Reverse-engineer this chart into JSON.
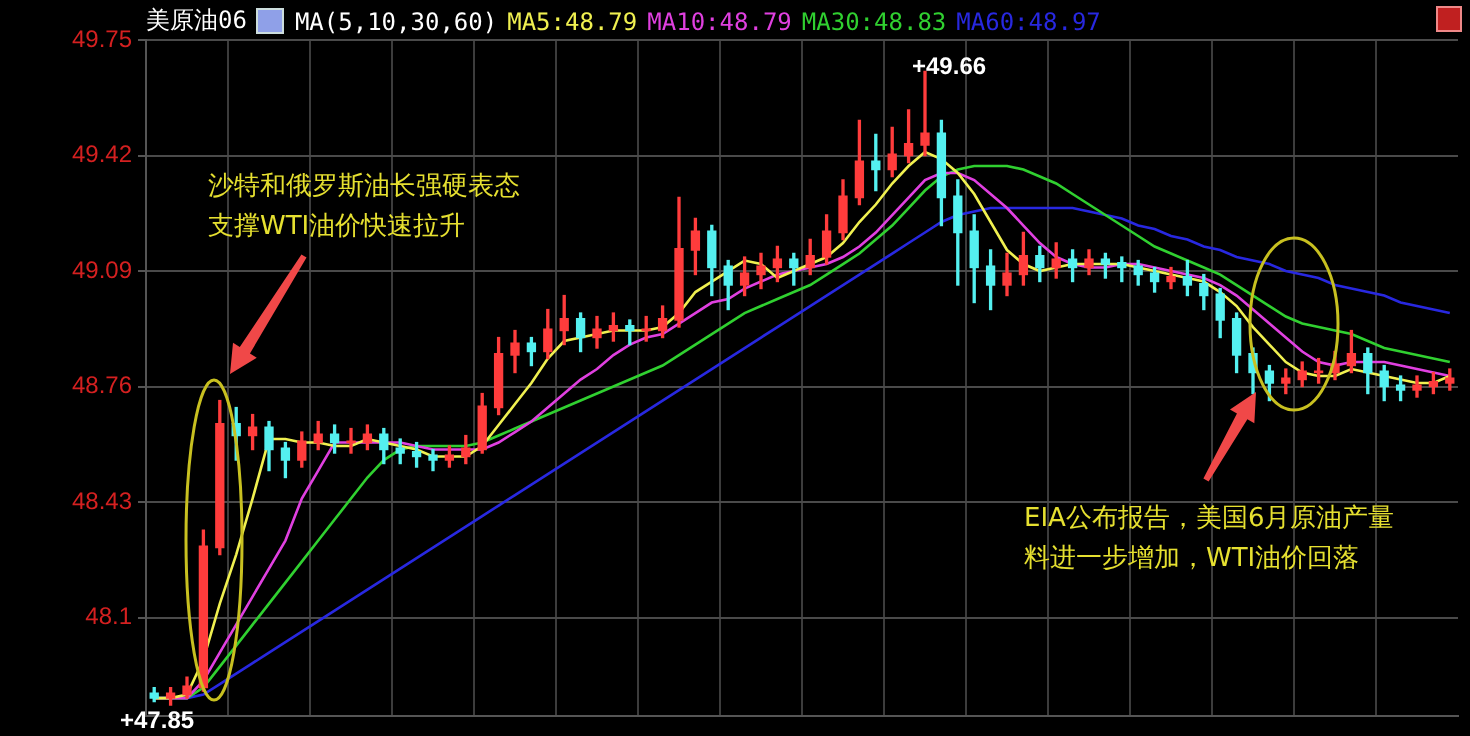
{
  "chart_data": {
    "type": "candlestick",
    "title": "美原油06",
    "subtitle": "MA(5,10,30,60)",
    "legend": "top left",
    "grid": true,
    "tick_labels": "y",
    "ylim": [
      47.82,
      49.75
    ],
    "yticks": [
      48.1,
      48.43,
      48.76,
      49.09,
      49.42,
      49.75
    ],
    "categories": [
      null,
      null,
      null,
      null,
      null,
      null,
      null,
      null,
      null,
      null,
      null,
      null,
      null,
      null,
      null,
      null,
      null,
      null,
      null,
      null,
      null,
      null,
      null,
      null,
      null,
      null,
      null,
      null,
      null,
      null,
      null,
      null,
      null,
      null,
      null,
      null,
      null,
      null,
      null,
      null,
      null,
      null,
      null,
      null,
      null,
      null,
      null,
      null,
      null,
      null,
      null,
      null,
      null,
      null,
      null,
      null,
      null,
      null,
      null,
      null,
      null,
      null,
      null,
      null,
      null,
      null,
      null,
      null,
      null,
      null,
      null,
      null,
      null,
      null,
      null,
      null,
      null,
      null,
      null,
      null
    ],
    "ohlc": [
      [
        47.88,
        47.9,
        47.86,
        47.87
      ],
      [
        47.87,
        47.9,
        47.85,
        47.88
      ],
      [
        47.88,
        47.93,
        47.87,
        47.9
      ],
      [
        47.9,
        48.35,
        47.89,
        48.3
      ],
      [
        48.3,
        48.72,
        48.28,
        48.65
      ],
      [
        48.65,
        48.7,
        48.55,
        48.62
      ],
      [
        48.62,
        48.68,
        48.58,
        48.64
      ],
      [
        48.64,
        48.66,
        48.52,
        48.58
      ],
      [
        48.58,
        48.6,
        48.5,
        48.55
      ],
      [
        48.55,
        48.63,
        48.53,
        48.6
      ],
      [
        48.6,
        48.66,
        48.58,
        48.62
      ],
      [
        48.62,
        48.65,
        48.57,
        48.6
      ],
      [
        48.6,
        48.64,
        48.57,
        48.6
      ],
      [
        48.6,
        48.65,
        48.58,
        48.62
      ],
      [
        48.62,
        48.64,
        48.54,
        48.58
      ],
      [
        48.58,
        48.61,
        48.54,
        48.57
      ],
      [
        48.57,
        48.6,
        48.53,
        48.56
      ],
      [
        48.56,
        48.58,
        48.52,
        48.55
      ],
      [
        48.55,
        48.59,
        48.53,
        48.56
      ],
      [
        48.56,
        48.62,
        48.54,
        48.58
      ],
      [
        48.58,
        48.74,
        48.57,
        48.7
      ],
      [
        48.7,
        48.9,
        48.68,
        48.85
      ],
      [
        48.85,
        48.92,
        48.8,
        48.88
      ],
      [
        48.88,
        48.9,
        48.82,
        48.86
      ],
      [
        48.86,
        48.98,
        48.84,
        48.92
      ],
      [
        48.92,
        49.02,
        48.88,
        48.95
      ],
      [
        48.95,
        48.97,
        48.86,
        48.9
      ],
      [
        48.9,
        48.96,
        48.87,
        48.92
      ],
      [
        48.92,
        48.97,
        48.89,
        48.93
      ],
      [
        48.93,
        48.95,
        48.88,
        48.92
      ],
      [
        48.92,
        48.96,
        48.89,
        48.92
      ],
      [
        48.92,
        48.99,
        48.9,
        48.95
      ],
      [
        48.95,
        49.3,
        48.93,
        49.15
      ],
      [
        49.15,
        49.24,
        49.08,
        49.2
      ],
      [
        49.2,
        49.22,
        49.02,
        49.1
      ],
      [
        49.1,
        49.12,
        48.98,
        49.05
      ],
      [
        49.05,
        49.13,
        49.02,
        49.08
      ],
      [
        49.08,
        49.14,
        49.04,
        49.1
      ],
      [
        49.1,
        49.16,
        49.06,
        49.12
      ],
      [
        49.12,
        49.14,
        49.05,
        49.1
      ],
      [
        49.1,
        49.18,
        49.08,
        49.13
      ],
      [
        49.13,
        49.25,
        49.11,
        49.2
      ],
      [
        49.2,
        49.35,
        49.18,
        49.3
      ],
      [
        49.3,
        49.52,
        49.28,
        49.4
      ],
      [
        49.4,
        49.48,
        49.32,
        49.38
      ],
      [
        49.38,
        49.5,
        49.36,
        49.42
      ],
      [
        49.42,
        49.55,
        49.4,
        49.45
      ],
      [
        49.45,
        49.66,
        49.42,
        49.48
      ],
      [
        49.48,
        49.52,
        49.22,
        49.3
      ],
      [
        49.3,
        49.35,
        49.05,
        49.2
      ],
      [
        49.2,
        49.25,
        49.0,
        49.1
      ],
      [
        49.1,
        49.15,
        48.98,
        49.05
      ],
      [
        49.05,
        49.14,
        49.02,
        49.08
      ],
      [
        49.08,
        49.2,
        49.05,
        49.13
      ],
      [
        49.13,
        49.16,
        49.06,
        49.1
      ],
      [
        49.1,
        49.17,
        49.07,
        49.12
      ],
      [
        49.12,
        49.15,
        49.06,
        49.1
      ],
      [
        49.1,
        49.15,
        49.08,
        49.12
      ],
      [
        49.12,
        49.14,
        49.07,
        49.11
      ],
      [
        49.11,
        49.13,
        49.06,
        49.1
      ],
      [
        49.1,
        49.12,
        49.05,
        49.08
      ],
      [
        49.08,
        49.1,
        49.03,
        49.06
      ],
      [
        49.06,
        49.1,
        49.04,
        49.07
      ],
      [
        49.07,
        49.12,
        49.02,
        49.05
      ],
      [
        49.05,
        49.08,
        48.98,
        49.02
      ],
      [
        49.02,
        49.04,
        48.9,
        48.95
      ],
      [
        48.95,
        48.97,
        48.8,
        48.85
      ],
      [
        48.85,
        48.87,
        48.74,
        48.8
      ],
      [
        48.8,
        48.82,
        48.72,
        48.77
      ],
      [
        48.77,
        48.81,
        48.74,
        48.78
      ],
      [
        48.78,
        48.83,
        48.76,
        48.8
      ],
      [
        48.8,
        48.84,
        48.77,
        48.8
      ],
      [
        48.8,
        48.86,
        48.78,
        48.82
      ],
      [
        48.82,
        48.92,
        48.8,
        48.85
      ],
      [
        48.85,
        48.87,
        48.74,
        48.8
      ],
      [
        48.8,
        48.82,
        48.72,
        48.76
      ],
      [
        48.76,
        48.79,
        48.72,
        48.75
      ],
      [
        48.75,
        48.79,
        48.73,
        48.76
      ],
      [
        48.76,
        48.8,
        48.74,
        48.77
      ],
      [
        48.77,
        48.81,
        48.75,
        48.78
      ]
    ],
    "series": [
      {
        "type": "line",
        "name": "MA5:48.79",
        "color": "#f0f050",
        "values": [
          47.87,
          47.87,
          47.88,
          47.98,
          48.14,
          48.28,
          48.44,
          48.61,
          48.61,
          48.6,
          48.6,
          48.59,
          48.59,
          48.61,
          48.6,
          48.59,
          48.58,
          48.56,
          48.56,
          48.56,
          48.59,
          48.65,
          48.71,
          48.77,
          48.84,
          48.89,
          48.9,
          48.91,
          48.92,
          48.92,
          48.92,
          48.93,
          48.97,
          49.03,
          49.06,
          49.09,
          49.12,
          49.11,
          49.07,
          49.09,
          49.11,
          49.13,
          49.17,
          49.23,
          49.28,
          49.34,
          49.39,
          49.43,
          49.41,
          49.37,
          49.31,
          49.23,
          49.15,
          49.11,
          49.09,
          49.1,
          49.11,
          49.11,
          49.11,
          49.11,
          49.1,
          49.09,
          49.08,
          49.07,
          49.06,
          49.03,
          48.99,
          48.93,
          48.88,
          48.83,
          48.8,
          48.79,
          48.79,
          48.81,
          48.8,
          48.79,
          48.78,
          48.77,
          48.77,
          48.79
        ]
      },
      {
        "type": "line",
        "name": "MA10:48.79",
        "color": "#e040e0",
        "values": [
          47.87,
          47.87,
          47.87,
          47.92,
          48.0,
          48.08,
          48.16,
          48.24,
          48.32,
          48.44,
          48.52,
          48.6,
          48.6,
          48.6,
          48.6,
          48.6,
          48.59,
          48.58,
          48.58,
          48.58,
          48.58,
          48.6,
          48.63,
          48.66,
          48.7,
          48.74,
          48.78,
          48.81,
          48.85,
          48.88,
          48.9,
          48.91,
          48.94,
          48.97,
          49.0,
          49.01,
          49.04,
          49.06,
          49.08,
          49.09,
          49.1,
          49.11,
          49.13,
          49.16,
          49.2,
          49.25,
          49.3,
          49.35,
          49.37,
          49.37,
          49.35,
          49.31,
          49.27,
          49.22,
          49.17,
          49.13,
          49.11,
          49.1,
          49.1,
          49.11,
          49.11,
          49.1,
          49.09,
          49.08,
          49.07,
          49.05,
          49.02,
          48.98,
          48.94,
          48.9,
          48.86,
          48.83,
          48.82,
          48.83,
          48.83,
          48.83,
          48.82,
          48.81,
          48.8,
          48.79
        ]
      },
      {
        "type": "line",
        "name": "MA30:48.83",
        "color": "#30d030",
        "values": [
          47.87,
          47.87,
          47.87,
          47.9,
          47.96,
          48.02,
          48.08,
          48.14,
          48.2,
          48.26,
          48.32,
          48.38,
          48.44,
          48.5,
          48.55,
          48.58,
          48.59,
          48.59,
          48.59,
          48.59,
          48.6,
          48.62,
          48.64,
          48.66,
          48.68,
          48.7,
          48.72,
          48.74,
          48.76,
          48.78,
          48.8,
          48.82,
          48.85,
          48.88,
          48.91,
          48.94,
          48.97,
          48.99,
          49.01,
          49.03,
          49.05,
          49.08,
          49.11,
          49.14,
          49.18,
          49.22,
          49.27,
          49.32,
          49.36,
          49.38,
          49.39,
          49.39,
          49.39,
          49.38,
          49.36,
          49.34,
          49.31,
          49.28,
          49.25,
          49.22,
          49.19,
          49.16,
          49.14,
          49.12,
          49.1,
          49.08,
          49.05,
          49.02,
          48.99,
          48.96,
          48.94,
          48.93,
          48.92,
          48.91,
          48.89,
          48.87,
          48.86,
          48.85,
          48.84,
          48.83
        ]
      },
      {
        "type": "line",
        "name": "MA60:48.97",
        "color": "#2828e0",
        "values": [
          47.87,
          47.87,
          47.87,
          47.88,
          47.91,
          47.94,
          47.97,
          48.0,
          48.03,
          48.06,
          48.09,
          48.12,
          48.15,
          48.18,
          48.21,
          48.24,
          48.27,
          48.3,
          48.33,
          48.36,
          48.39,
          48.42,
          48.45,
          48.48,
          48.51,
          48.54,
          48.57,
          48.6,
          48.63,
          48.66,
          48.69,
          48.72,
          48.75,
          48.78,
          48.81,
          48.84,
          48.87,
          48.9,
          48.93,
          48.96,
          48.99,
          49.02,
          49.05,
          49.08,
          49.11,
          49.14,
          49.17,
          49.2,
          49.23,
          49.25,
          49.26,
          49.27,
          49.27,
          49.27,
          49.27,
          49.27,
          49.27,
          49.26,
          49.25,
          49.24,
          49.22,
          49.21,
          49.19,
          49.18,
          49.16,
          49.15,
          49.13,
          49.12,
          49.11,
          49.09,
          49.08,
          49.07,
          49.05,
          49.04,
          49.03,
          49.02,
          49.0,
          48.99,
          48.98,
          48.97
        ]
      }
    ],
    "annotations": [
      "沙特和俄罗斯油长强硬表态支撑WTI油价快速拉升",
      "EIA公布报告，美国6月原油产量料进一步增加，WTI油价回落",
      "+49.66",
      "+47.85"
    ]
  }
}
